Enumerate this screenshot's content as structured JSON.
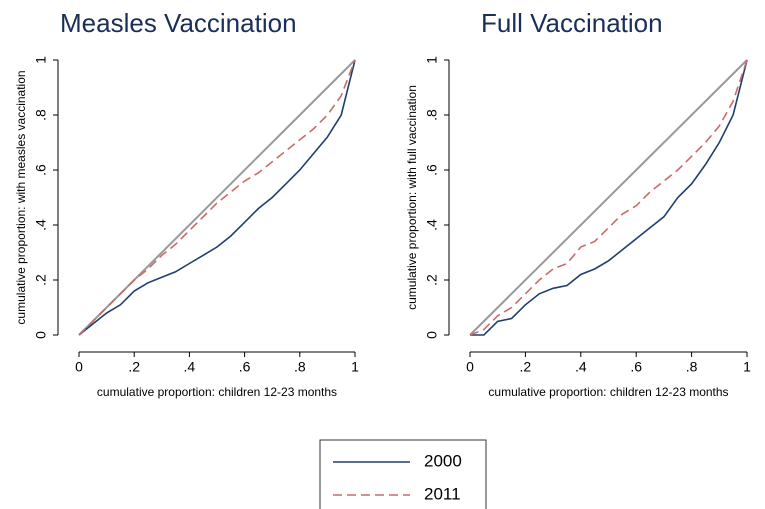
{
  "chart_data": [
    {
      "type": "line",
      "title": "Measles Vaccination",
      "xlabel": "cumulative proportion: children 12-23 months",
      "ylabel": "cumulative proportion: with measles vaccination",
      "x": [
        0,
        0.05,
        0.1,
        0.15,
        0.2,
        0.25,
        0.3,
        0.35,
        0.4,
        0.45,
        0.5,
        0.55,
        0.6,
        0.65,
        0.7,
        0.75,
        0.8,
        0.85,
        0.9,
        0.95,
        1
      ],
      "series": [
        {
          "name": "2000",
          "color": "#1f3f6e",
          "style": "solid",
          "values": [
            0,
            0.04,
            0.08,
            0.11,
            0.16,
            0.19,
            0.21,
            0.23,
            0.26,
            0.29,
            0.32,
            0.36,
            0.41,
            0.46,
            0.5,
            0.55,
            0.6,
            0.66,
            0.72,
            0.8,
            1
          ]
        },
        {
          "name": "2011",
          "color": "#c86b6b",
          "style": "dashed",
          "values": [
            0,
            0.05,
            0.1,
            0.15,
            0.2,
            0.24,
            0.29,
            0.33,
            0.38,
            0.43,
            0.48,
            0.52,
            0.56,
            0.59,
            0.63,
            0.67,
            0.71,
            0.75,
            0.8,
            0.87,
            1
          ]
        }
      ],
      "equality_line": true,
      "xlim": [
        0,
        1
      ],
      "ylim": [
        0,
        1
      ],
      "xticks": [
        0,
        {
          "value": 0.2,
          "label": ".2"
        },
        {
          "value": 0.4,
          "label": ".4"
        },
        {
          "value": 0.6,
          "label": ".6"
        },
        {
          "value": 0.8,
          "label": ".8"
        },
        1
      ],
      "yticks": [
        0,
        {
          "value": 0.2,
          "label": ".2"
        },
        {
          "value": 0.4,
          "label": ".4"
        },
        {
          "value": 0.6,
          "label": ".6"
        },
        {
          "value": 0.8,
          "label": ".8"
        },
        1
      ]
    },
    {
      "type": "line",
      "title": "Full Vaccination",
      "xlabel": "cumulative proportion: children 12-23 months",
      "ylabel": "cumulative proportion: with full vaccination",
      "x": [
        0,
        0.05,
        0.1,
        0.15,
        0.2,
        0.25,
        0.3,
        0.35,
        0.4,
        0.45,
        0.5,
        0.55,
        0.6,
        0.65,
        0.7,
        0.75,
        0.8,
        0.85,
        0.9,
        0.95,
        1
      ],
      "series": [
        {
          "name": "2000",
          "color": "#1f3f6e",
          "style": "solid",
          "values": [
            0,
            0,
            0.05,
            0.06,
            0.11,
            0.15,
            0.17,
            0.18,
            0.22,
            0.24,
            0.27,
            0.31,
            0.35,
            0.39,
            0.43,
            0.5,
            0.55,
            0.62,
            0.7,
            0.8,
            1
          ]
        },
        {
          "name": "2011",
          "color": "#c86b6b",
          "style": "dashed",
          "values": [
            0,
            0.02,
            0.07,
            0.1,
            0.15,
            0.2,
            0.24,
            0.26,
            0.32,
            0.34,
            0.39,
            0.44,
            0.47,
            0.52,
            0.56,
            0.6,
            0.65,
            0.7,
            0.76,
            0.85,
            1
          ]
        }
      ],
      "equality_line": true,
      "xlim": [
        0,
        1
      ],
      "ylim": [
        0,
        1
      ],
      "xticks": [
        0,
        {
          "value": 0.2,
          "label": ".2"
        },
        {
          "value": 0.4,
          "label": ".4"
        },
        {
          "value": 0.6,
          "label": ".6"
        },
        {
          "value": 0.8,
          "label": ".8"
        },
        1
      ],
      "yticks": [
        0,
        {
          "value": 0.2,
          "label": ".2"
        },
        {
          "value": 0.4,
          "label": ".4"
        },
        {
          "value": 0.6,
          "label": ".6"
        },
        {
          "value": 0.8,
          "label": ".8"
        },
        1
      ]
    }
  ]
}
